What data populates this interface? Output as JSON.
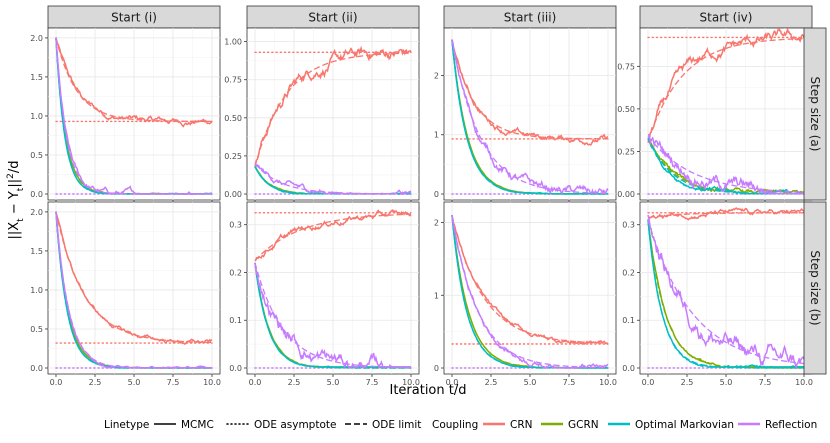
{
  "chart_data": {
    "type": "line",
    "facet_columns": [
      "Start (i)",
      "Start (ii)",
      "Start (iii)",
      "Start (iv)"
    ],
    "facet_rows": [
      "Step size (a)",
      "Step size (b)"
    ],
    "xlabel": "Iteration t/d",
    "ylabel": "||X_t − Y_t||²/d",
    "ylabel_parts": {
      "prefix": "||X",
      "sub1": "t",
      "mid": " − Y",
      "sub2": "t",
      "suffix": "||",
      "sup": "2",
      "tail": "/d"
    },
    "xlim": [
      0,
      10
    ],
    "x_ticks": [
      0,
      2.5,
      5,
      7.5,
      10
    ],
    "x_tick_labels": [
      "0.0",
      "2.5",
      "5.0",
      "7.5",
      "10.0"
    ],
    "legend": {
      "linetype_title": "Linetype",
      "linetypes": [
        "MCMC",
        "ODE asymptote",
        "ODE limit"
      ],
      "coupling_title": "Coupling",
      "couplings": [
        {
          "name": "CRN",
          "color": "#F8766D"
        },
        {
          "name": "GCRN",
          "color": "#7CAE00"
        },
        {
          "name": "Optimal Markovian",
          "color": "#00BFC4"
        },
        {
          "name": "Reflection",
          "color": "#C77CFF"
        }
      ]
    },
    "panels": [
      {
        "row": 0,
        "col": 0,
        "ylim": [
          0,
          2.05
        ],
        "y_ticks": [
          0,
          0.5,
          1.0,
          1.5,
          2.0
        ],
        "y_tick_labels": [
          "0.0",
          "0.5",
          "1.0",
          "1.5",
          "2.0"
        ],
        "series": [
          {
            "coupling": "CRN",
            "start": 2.0,
            "asymptote": 0.93,
            "rate": 0.75,
            "noise": 0.03
          },
          {
            "coupling": "GCRN",
            "start": 2.0,
            "asymptote": 0.0,
            "rate": 1.6,
            "noise": 0.004
          },
          {
            "coupling": "Optimal Markovian",
            "start": 2.0,
            "asymptote": 0.0,
            "rate": 1.75,
            "noise": 0.004
          },
          {
            "coupling": "Reflection",
            "start": 2.0,
            "asymptote": 0.0,
            "rate": 1.5,
            "noise": 0.03
          }
        ]
      },
      {
        "row": 0,
        "col": 1,
        "ylim": [
          0,
          1.05
        ],
        "y_ticks": [
          0,
          0.25,
          0.5,
          0.75,
          1.0
        ],
        "y_tick_labels": [
          "0.00",
          "0.25",
          "0.50",
          "0.75",
          "1.00"
        ],
        "series": [
          {
            "coupling": "CRN",
            "start": 0.18,
            "asymptote": 0.93,
            "rate": 0.5,
            "noise": 0.03
          },
          {
            "coupling": "GCRN",
            "start": 0.18,
            "asymptote": 0.0,
            "rate": 1.1,
            "noise": 0.003
          },
          {
            "coupling": "Optimal Markovian",
            "start": 0.18,
            "asymptote": 0.0,
            "rate": 1.2,
            "noise": 0.003
          },
          {
            "coupling": "Reflection",
            "start": 0.2,
            "asymptote": 0.0,
            "rate": 0.6,
            "noise": 0.015
          }
        ]
      },
      {
        "row": 0,
        "col": 2,
        "ylim": [
          0,
          2.7
        ],
        "y_ticks": [
          0,
          1,
          2
        ],
        "y_tick_labels": [
          "0",
          "1",
          "2"
        ],
        "series": [
          {
            "coupling": "CRN",
            "start": 2.6,
            "asymptote": 0.93,
            "rate": 0.7,
            "noise": 0.04
          },
          {
            "coupling": "GCRN",
            "start": 2.6,
            "asymptote": 0.0,
            "rate": 1.0,
            "noise": 0.005
          },
          {
            "coupling": "Optimal Markovian",
            "start": 2.6,
            "asymptote": 0.0,
            "rate": 1.05,
            "noise": 0.005
          },
          {
            "coupling": "Reflection",
            "start": 2.6,
            "asymptote": 0.0,
            "rate": 0.55,
            "noise": 0.06
          }
        ]
      },
      {
        "row": 0,
        "col": 3,
        "ylim": [
          0,
          0.94
        ],
        "y_ticks": [
          0,
          0.25,
          0.5,
          0.75
        ],
        "y_tick_labels": [
          "0.00",
          "0.25",
          "0.50",
          "0.75"
        ],
        "series": [
          {
            "coupling": "CRN",
            "start": 0.31,
            "asymptote": 0.92,
            "rate": 0.45,
            "noise": 0.025
          },
          {
            "coupling": "GCRN",
            "start": 0.33,
            "asymptote": 0.0,
            "rate": 0.6,
            "noise": 0.01
          },
          {
            "coupling": "Optimal Markovian",
            "start": 0.33,
            "asymptote": 0.0,
            "rate": 0.65,
            "noise": 0.01
          },
          {
            "coupling": "Reflection",
            "start": 0.34,
            "asymptote": 0.0,
            "rate": 0.35,
            "noise": 0.03
          }
        ]
      },
      {
        "row": 1,
        "col": 0,
        "ylim": [
          0,
          2.05
        ],
        "y_ticks": [
          0,
          0.5,
          1.0,
          1.5,
          2.0
        ],
        "y_tick_labels": [
          "0.0",
          "0.5",
          "1.0",
          "1.5",
          "2.0"
        ],
        "series": [
          {
            "coupling": "CRN",
            "start": 2.0,
            "asymptote": 0.32,
            "rate": 0.55,
            "noise": 0.02
          },
          {
            "coupling": "GCRN",
            "start": 2.0,
            "asymptote": 0.0,
            "rate": 1.3,
            "noise": 0.004
          },
          {
            "coupling": "Optimal Markovian",
            "start": 2.0,
            "asymptote": 0.0,
            "rate": 1.4,
            "noise": 0.004
          },
          {
            "coupling": "Reflection",
            "start": 2.0,
            "asymptote": 0.0,
            "rate": 1.2,
            "noise": 0.01
          }
        ]
      },
      {
        "row": 1,
        "col": 1,
        "ylim": [
          0,
          0.335
        ],
        "y_ticks": [
          0,
          0.1,
          0.2,
          0.3
        ],
        "y_tick_labels": [
          "0.0",
          "0.1",
          "0.2",
          "0.3"
        ],
        "series": [
          {
            "coupling": "CRN",
            "start": 0.225,
            "asymptote": 0.325,
            "rate": 0.35,
            "noise": 0.005
          },
          {
            "coupling": "GCRN",
            "start": 0.22,
            "asymptote": 0.0,
            "rate": 1.1,
            "noise": 0.001
          },
          {
            "coupling": "Optimal Markovian",
            "start": 0.22,
            "asymptote": 0.0,
            "rate": 1.15,
            "noise": 0.001
          },
          {
            "coupling": "Reflection",
            "start": 0.22,
            "asymptote": 0.0,
            "rate": 0.55,
            "noise": 0.012
          }
        ]
      },
      {
        "row": 1,
        "col": 2,
        "ylim": [
          0,
          2.2
        ],
        "y_ticks": [
          0,
          1,
          2
        ],
        "y_tick_labels": [
          "0",
          "1",
          "2"
        ],
        "series": [
          {
            "coupling": "CRN",
            "start": 2.1,
            "asymptote": 0.33,
            "rate": 0.5,
            "noise": 0.025
          },
          {
            "coupling": "GCRN",
            "start": 2.1,
            "asymptote": 0.0,
            "rate": 0.95,
            "noise": 0.004
          },
          {
            "coupling": "Optimal Markovian",
            "start": 2.1,
            "asymptote": 0.0,
            "rate": 1.05,
            "noise": 0.004
          },
          {
            "coupling": "Reflection",
            "start": 2.1,
            "asymptote": 0.0,
            "rate": 0.6,
            "noise": 0.03
          }
        ]
      },
      {
        "row": 1,
        "col": 3,
        "ylim": [
          0,
          0.335
        ],
        "y_ticks": [
          0,
          0.1,
          0.2,
          0.3
        ],
        "y_tick_labels": [
          "0.0",
          "0.1",
          "0.2",
          "0.3"
        ],
        "series": [
          {
            "coupling": "CRN",
            "start": 0.315,
            "asymptote": 0.325,
            "rate": 0.5,
            "noise": 0.004
          },
          {
            "coupling": "GCRN",
            "start": 0.31,
            "asymptote": 0.0,
            "rate": 0.9,
            "noise": 0.002
          },
          {
            "coupling": "Optimal Markovian",
            "start": 0.31,
            "asymptote": 0.0,
            "rate": 1.1,
            "noise": 0.002
          },
          {
            "coupling": "Reflection",
            "start": 0.31,
            "asymptote": 0.0,
            "rate": 0.35,
            "noise": 0.015
          }
        ]
      }
    ]
  }
}
